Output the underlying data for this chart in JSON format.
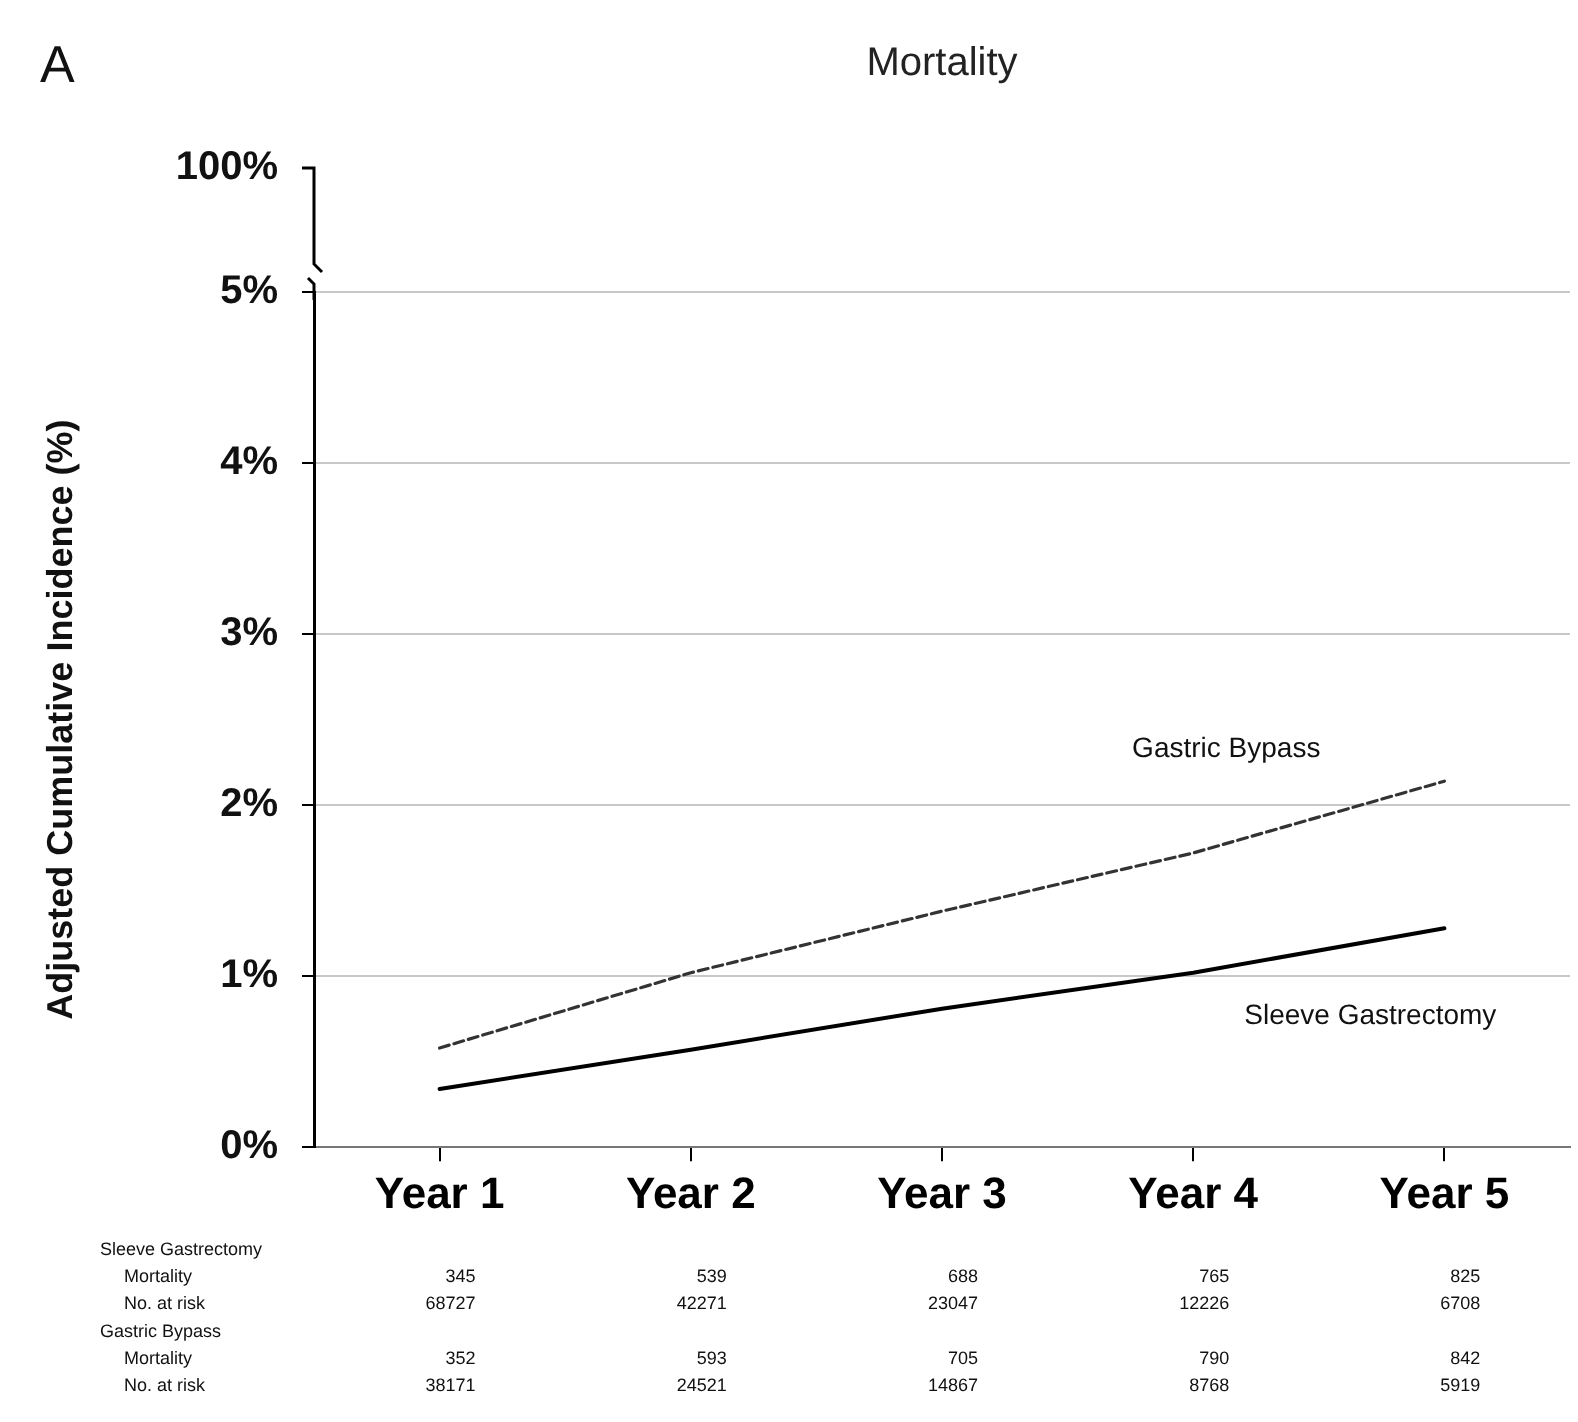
{
  "chart_data": {
    "type": "line",
    "title": "Mortality",
    "ylabel": "Adjusted Cumulative Incidence (%)",
    "categories": [
      "Year 1",
      "Year 2",
      "Year 3",
      "Year 4",
      "Year 5"
    ],
    "series": [
      {
        "name": "Sleeve Gastrectomy",
        "color": "#000000",
        "line_style": "solid",
        "values": [
          0.34,
          0.57,
          0.81,
          1.02,
          1.28
        ]
      },
      {
        "name": "Gastric Bypass",
        "color": "#333333",
        "line_style": "dashed",
        "values": [
          0.58,
          1.02,
          1.38,
          1.72,
          2.14
        ]
      }
    ],
    "ylim": [
      0,
      5
    ],
    "yticks": [
      {
        "value": 0,
        "label": "0%"
      },
      {
        "value": 1,
        "label": "1%"
      },
      {
        "value": 2,
        "label": "2%"
      },
      {
        "value": 3,
        "label": "3%"
      },
      {
        "value": 4,
        "label": "4%"
      },
      {
        "value": 5,
        "label": "5%"
      }
    ],
    "grid": "y",
    "legend": false,
    "marker": "none",
    "annotations": [
      "A",
      "100%",
      "Sleeve Gastrectomy",
      "Mortality",
      "345",
      "539",
      "688",
      "765",
      "825",
      "No. at risk",
      "68727",
      "42271",
      "23047",
      "12226",
      "6708",
      "Gastric Bypass",
      "Mortality",
      "352",
      "593",
      "705",
      "790",
      "842",
      "No. at risk",
      "38171",
      "24521",
      "14867",
      "8768",
      "5919"
    ]
  }
}
